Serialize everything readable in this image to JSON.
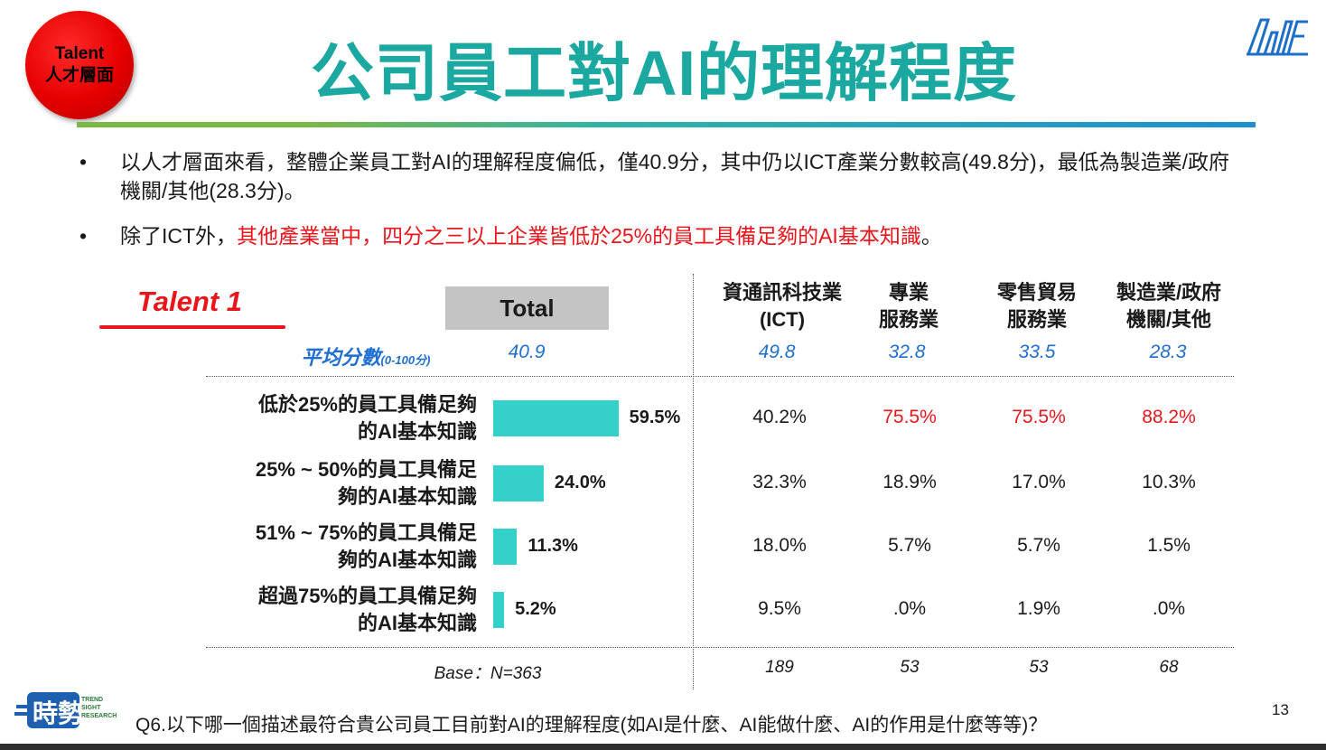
{
  "badge": {
    "line1": "Talent",
    "line2": "人才層面"
  },
  "title": "公司員工對AI的理解程度",
  "logo_icon": "aiif-logo-icon",
  "bullets": [
    {
      "text": "以人才層面來看，整體企業員工對AI的理解程度偏低，僅40.9分，其中仍以ICT產業分數較高(49.8分)，最低為製造業/政府機關/其他(28.3分)。"
    },
    {
      "prefix": "除了ICT外，",
      "highlight": "其他產業當中，四分之三以上企業皆低於25%的員工具備足夠的AI基本知識",
      "suffix": "。"
    }
  ],
  "talent_label": "Talent 1",
  "total_label": "Total",
  "avg_label": "平均分數",
  "avg_label_small": "(0-100分)",
  "base_label": "Base：N=363",
  "question": "Q6.以下哪一個描述最符合貴公司員工目前對AI的理解程度(如AI是什麼、AI能做什麼、AI的作用是什麼等等)？",
  "page_number": "13",
  "footer_logo": {
    "icon": "trend-sight-logo-icon",
    "text": "時勢",
    "sub": "TREND SIGHT RESEARCH"
  },
  "colors": {
    "title": "#1aa8a0",
    "bar": "#33d1c9",
    "highlight": "#e8161b",
    "avg": "#1f6fd1"
  },
  "chart_data": {
    "type": "bar",
    "orientation": "horizontal",
    "categories": [
      "低於25%的員工具備足夠的AI基本知識",
      "25% ~ 50%的員工具備足夠的AI基本知識",
      "51% ~ 75%的員工具備足夠的AI基本知識",
      "超過75%的員工具備足夠的AI基本知識"
    ],
    "category_lines": [
      [
        "低於25%的員工具備足夠",
        "的AI基本知識"
      ],
      [
        "25% ~ 50%的員工具備足",
        "夠的AI基本知識"
      ],
      [
        "51% ~ 75%的員工具備足",
        "夠的AI基本知識"
      ],
      [
        "超過75%的員工具備足夠",
        "的AI基本知識"
      ]
    ],
    "values": [
      59.5,
      24.0,
      11.3,
      5.2
    ],
    "value_labels": [
      "59.5%",
      "24.0%",
      "11.3%",
      "5.2%"
    ],
    "xlim": [
      0,
      100
    ],
    "table": {
      "columns": [
        {
          "header": [
            "資通訊科技業",
            "(ICT)"
          ],
          "avg": "49.8",
          "values": [
            "40.2%",
            "32.3%",
            "18.0%",
            "9.5%"
          ],
          "base": "189"
        },
        {
          "header": [
            "專業",
            "服務業"
          ],
          "avg": "32.8",
          "values": [
            "75.5%",
            "18.9%",
            "5.7%",
            ".0%"
          ],
          "base": "53"
        },
        {
          "header": [
            "零售貿易",
            "服務業"
          ],
          "avg": "33.5",
          "values": [
            "75.5%",
            "17.0%",
            "5.7%",
            "1.9%"
          ],
          "base": "53"
        },
        {
          "header": [
            "製造業/政府",
            "機關/其他"
          ],
          "avg": "28.3",
          "values": [
            "88.2%",
            "10.3%",
            "1.5%",
            ".0%"
          ],
          "base": "68"
        }
      ],
      "total_avg": "40.9",
      "highlight_cells": [
        [
          1,
          0
        ],
        [
          2,
          0
        ],
        [
          3,
          0
        ]
      ]
    }
  }
}
